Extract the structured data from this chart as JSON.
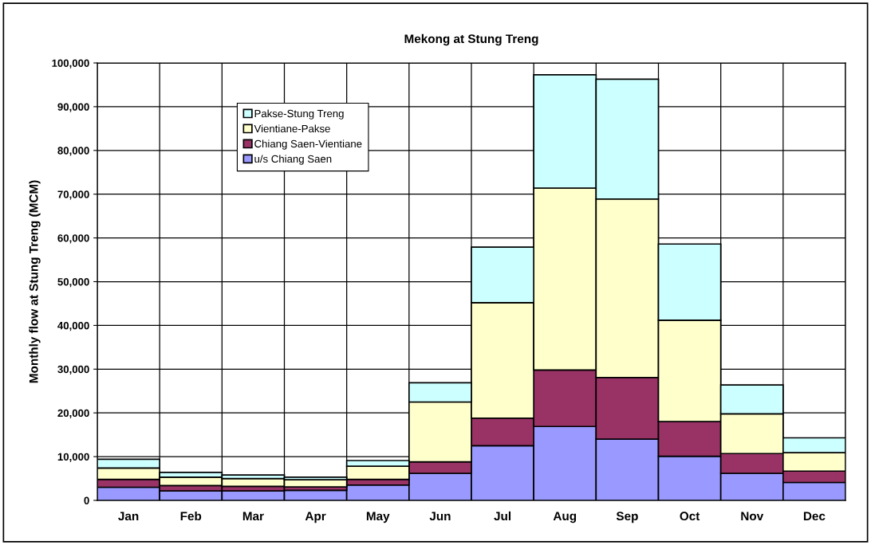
{
  "chart_data": {
    "type": "bar",
    "title": "Mekong at Stung Treng",
    "ylabel": "Monthly flow at Stung Treng (MCM)",
    "categories": [
      "Jan",
      "Feb",
      "Mar",
      "Apr",
      "May",
      "Jun",
      "Jul",
      "Aug",
      "Sep",
      "Oct",
      "Nov",
      "Dec"
    ],
    "stacked": true,
    "series": [
      {
        "name": "u/s Chiang Saen",
        "color": "#9999ff",
        "values": [
          3000,
          2150,
          2150,
          2300,
          3500,
          6200,
          12500,
          16900,
          14000,
          10100,
          6200,
          4100
        ]
      },
      {
        "name": "Chiang Saen-Vientiane",
        "color": "#993366",
        "values": [
          1800,
          1250,
          1050,
          800,
          1300,
          2600,
          6300,
          12900,
          14100,
          7900,
          4500,
          2600
        ]
      },
      {
        "name": "Vientiane-Pakse",
        "color": "#ffffcc",
        "values": [
          2600,
          1900,
          1800,
          1600,
          3000,
          13700,
          26400,
          41600,
          40800,
          23200,
          9100,
          4200
        ]
      },
      {
        "name": "Pakse-Stung Treng",
        "color": "#ccffff",
        "values": [
          2000,
          1100,
          800,
          600,
          1300,
          4400,
          12700,
          25900,
          27400,
          17400,
          6600,
          3400
        ]
      }
    ],
    "ylim": [
      0,
      100000
    ],
    "yticks": [
      {
        "value": 0,
        "label": "0"
      },
      {
        "value": 10000,
        "label": "10,000"
      },
      {
        "value": 20000,
        "label": "20,000"
      },
      {
        "value": 30000,
        "label": "30,000"
      },
      {
        "value": 40000,
        "label": "40,000"
      },
      {
        "value": 50000,
        "label": "50,000"
      },
      {
        "value": 60000,
        "label": "60,000"
      },
      {
        "value": 70000,
        "label": "70,000"
      },
      {
        "value": 80000,
        "label": "80,000"
      },
      {
        "value": 90000,
        "label": "90,000"
      },
      {
        "value": 100000,
        "label": "100,000"
      }
    ],
    "grid": true,
    "legend": "top left"
  }
}
